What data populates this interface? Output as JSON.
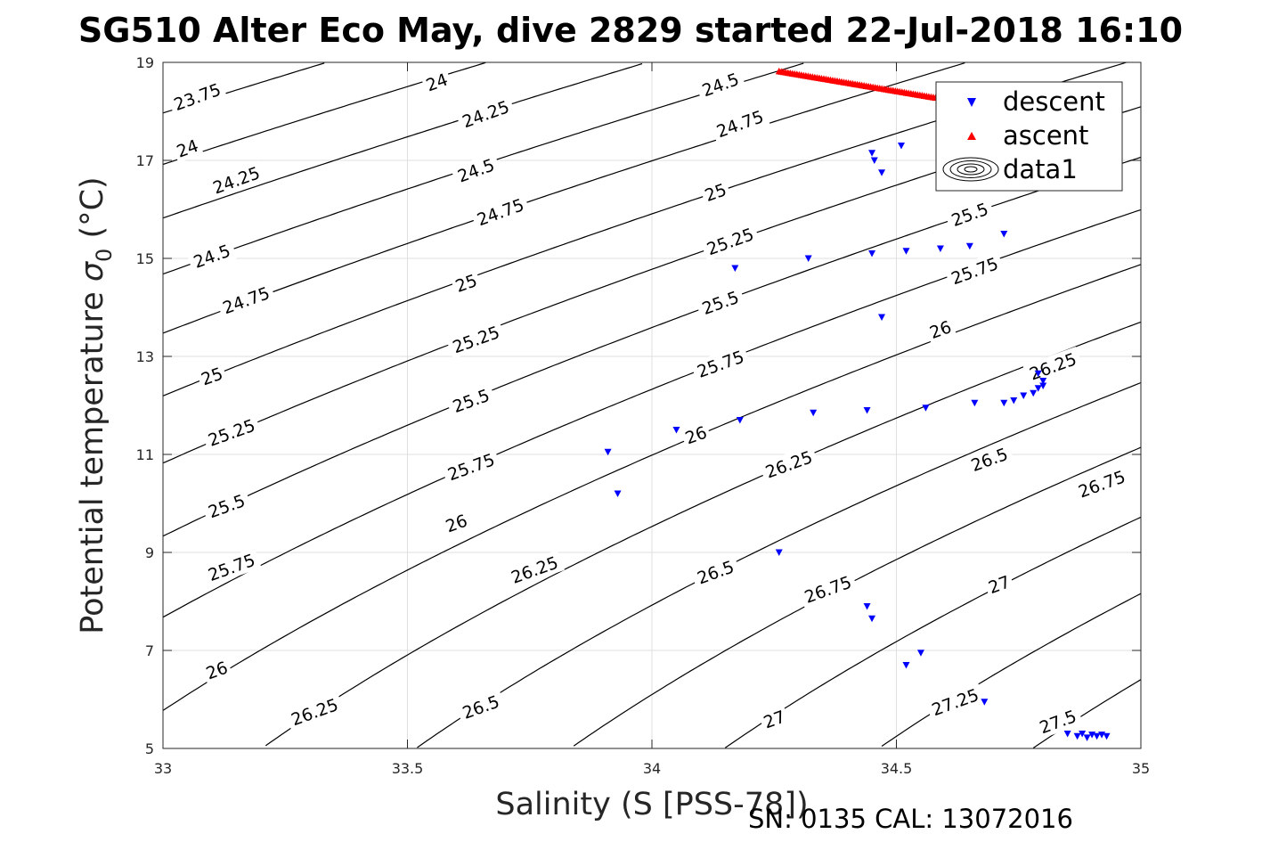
{
  "chart_data": {
    "type": "scatter",
    "title": "SG510 Alter Eco May, dive 2829 started 22-Jul-2018 16:10",
    "xlabel": "Salinity (S [PSS-78])",
    "ylabel": "Potential temperature",
    "ylabel_symbol": "σ",
    "ylabel_subscript": "0",
    "ylabel_unit": "(°C)",
    "xlim": [
      33,
      35
    ],
    "ylim": [
      5,
      19
    ],
    "x_ticks": [
      33,
      33.5,
      34,
      34.5,
      35
    ],
    "x_tick_labels": [
      "33",
      "33.5",
      "34",
      "34.5",
      "35"
    ],
    "y_ticks": [
      5,
      7,
      9,
      11,
      13,
      15,
      17,
      19
    ],
    "y_tick_labels": [
      "5",
      "7",
      "9",
      "11",
      "13",
      "15",
      "17",
      "19"
    ],
    "grid": true,
    "legend_position": "top-right",
    "footer": "SN: 0135  CAL: 13072016",
    "contour_levels": [
      23.75,
      24,
      24.25,
      24.5,
      24.75,
      25,
      25.25,
      25.5,
      25.75,
      26,
      26.25,
      26.5,
      26.75,
      27,
      27.25,
      27.5
    ],
    "contour_labels": [
      {
        "text": "23.75",
        "s": 33.07,
        "t": 18.3
      },
      {
        "text": "24",
        "s": 33.56,
        "t": 18.6
      },
      {
        "text": "24.5",
        "s": 34.14,
        "t": 18.55
      },
      {
        "text": "24",
        "s": 33.05,
        "t": 17.25
      },
      {
        "text": "24.25",
        "s": 33.66,
        "t": 17.95
      },
      {
        "text": "24.75",
        "s": 34.18,
        "t": 17.75
      },
      {
        "text": "24.25",
        "s": 33.15,
        "t": 16.6
      },
      {
        "text": "24.5",
        "s": 33.64,
        "t": 16.8
      },
      {
        "text": "25",
        "s": 34.13,
        "t": 16.35
      },
      {
        "text": "24.75",
        "s": 33.69,
        "t": 15.95
      },
      {
        "text": "25.5",
        "s": 34.65,
        "t": 15.9
      },
      {
        "text": "24.5",
        "s": 33.1,
        "t": 15.05
      },
      {
        "text": "25.25",
        "s": 34.16,
        "t": 15.35
      },
      {
        "text": "24.75",
        "s": 33.17,
        "t": 14.15
      },
      {
        "text": "25",
        "s": 33.62,
        "t": 14.5
      },
      {
        "text": "25.75",
        "s": 34.66,
        "t": 14.75
      },
      {
        "text": "25.5",
        "s": 34.14,
        "t": 14.1
      },
      {
        "text": "25.25",
        "s": 33.64,
        "t": 13.35
      },
      {
        "text": "26",
        "s": 34.59,
        "t": 13.55
      },
      {
        "text": "25",
        "s": 33.1,
        "t": 12.6
      },
      {
        "text": "25.75",
        "s": 34.14,
        "t": 12.85
      },
      {
        "text": "26.25",
        "s": 34.82,
        "t": 12.8
      },
      {
        "text": "25.5",
        "s": 33.63,
        "t": 12.1
      },
      {
        "text": "25.25",
        "s": 33.14,
        "t": 11.45
      },
      {
        "text": "26",
        "s": 34.09,
        "t": 11.4
      },
      {
        "text": "26.25",
        "s": 34.28,
        "t": 10.8
      },
      {
        "text": "26.5",
        "s": 34.69,
        "t": 10.9
      },
      {
        "text": "25.75",
        "s": 33.63,
        "t": 10.75
      },
      {
        "text": "26.75",
        "s": 34.92,
        "t": 10.4
      },
      {
        "text": "25.5",
        "s": 33.13,
        "t": 9.95
      },
      {
        "text": "26",
        "s": 33.6,
        "t": 9.6
      },
      {
        "text": "25.75",
        "s": 33.14,
        "t": 8.7
      },
      {
        "text": "26.25",
        "s": 33.76,
        "t": 8.65
      },
      {
        "text": "26.5",
        "s": 34.13,
        "t": 8.6
      },
      {
        "text": "27",
        "s": 34.71,
        "t": 8.35
      },
      {
        "text": "26.75",
        "s": 34.36,
        "t": 8.25
      },
      {
        "text": "26",
        "s": 33.11,
        "t": 6.6
      },
      {
        "text": "26.25",
        "s": 33.31,
        "t": 5.75
      },
      {
        "text": "26.5",
        "s": 33.65,
        "t": 5.85
      },
      {
        "text": "27",
        "s": 34.25,
        "t": 5.6
      },
      {
        "text": "27.25",
        "s": 34.62,
        "t": 5.95
      },
      {
        "text": "27.5",
        "s": 34.83,
        "t": 5.55
      }
    ],
    "series": [
      {
        "name": "descent",
        "marker": "triangle-down",
        "color": "#0000ff",
        "points": [
          [
            33.91,
            11.05
          ],
          [
            33.93,
            10.2
          ],
          [
            34.05,
            11.5
          ],
          [
            34.17,
            14.8
          ],
          [
            34.18,
            11.7
          ],
          [
            34.26,
            9.0
          ],
          [
            34.32,
            15.0
          ],
          [
            34.33,
            11.85
          ],
          [
            34.44,
            11.9
          ],
          [
            34.44,
            7.9
          ],
          [
            34.45,
            7.65
          ],
          [
            34.45,
            17.15
          ],
          [
            34.455,
            17.0
          ],
          [
            34.45,
            15.1
          ],
          [
            34.47,
            13.8
          ],
          [
            34.47,
            16.75
          ],
          [
            34.51,
            17.3
          ],
          [
            34.52,
            15.15
          ],
          [
            34.52,
            6.7
          ],
          [
            34.55,
            6.95
          ],
          [
            34.56,
            11.95
          ],
          [
            34.59,
            15.2
          ],
          [
            34.65,
            15.25
          ],
          [
            34.66,
            12.05
          ],
          [
            34.68,
            5.95
          ],
          [
            34.72,
            12.05
          ],
          [
            34.72,
            15.5
          ],
          [
            34.74,
            12.1
          ],
          [
            34.76,
            12.2
          ],
          [
            34.78,
            12.25
          ],
          [
            34.79,
            12.35
          ],
          [
            34.79,
            12.65
          ],
          [
            34.8,
            12.5
          ],
          [
            34.8,
            12.4
          ],
          [
            34.85,
            5.3
          ],
          [
            34.87,
            5.25
          ],
          [
            34.88,
            5.3
          ],
          [
            34.89,
            5.22
          ],
          [
            34.9,
            5.28
          ],
          [
            34.91,
            5.25
          ],
          [
            34.92,
            5.28
          ],
          [
            34.93,
            5.25
          ]
        ]
      },
      {
        "name": "ascent",
        "marker": "triangle-up",
        "color": "#ff0000",
        "line": {
          "s_start": 34.26,
          "s_end": 34.58,
          "t_start": 18.82,
          "t_end": 18.28
        }
      },
      {
        "name": "data1",
        "marker": "contour",
        "color": "#000000"
      }
    ]
  }
}
